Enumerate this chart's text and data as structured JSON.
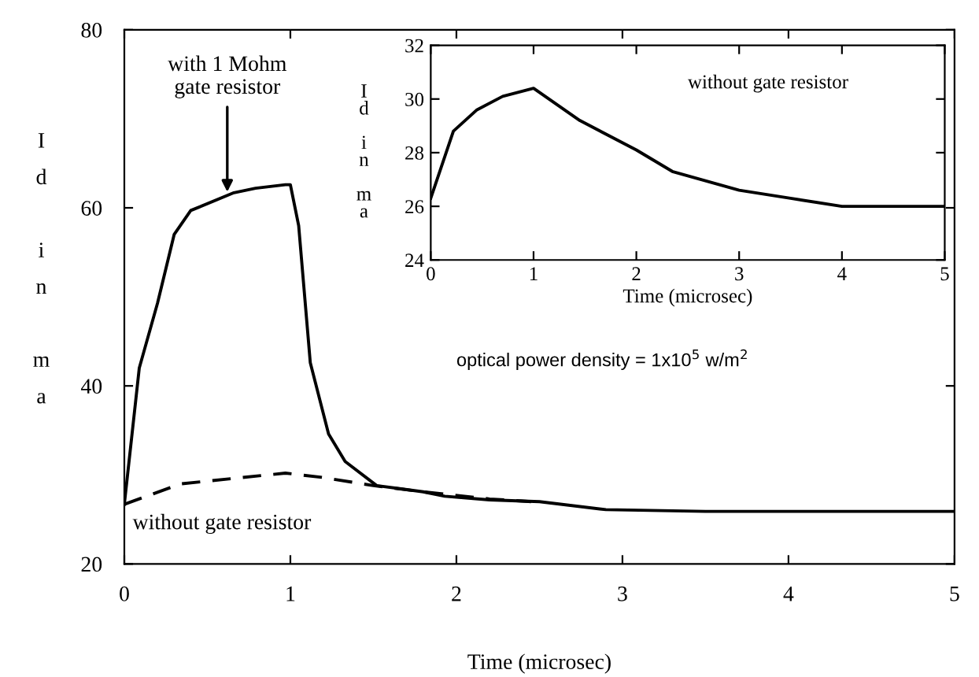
{
  "chart_data": [
    {
      "type": "line",
      "xlabel": "Time (microsec)",
      "ylabel": "Id in ma",
      "xlim": [
        0,
        5
      ],
      "ylim": [
        20,
        80
      ],
      "xticks": [
        0,
        1,
        2,
        3,
        4,
        5
      ],
      "yticks": [
        20,
        40,
        60,
        80
      ],
      "grid": false,
      "legend": false,
      "marker": "none",
      "series": [
        {
          "color": "#000000",
          "line_style": "solid",
          "x": [
            0,
            0.09,
            0.2,
            0.3,
            0.4,
            0.66,
            0.79,
            0.97,
            1.0,
            1.05,
            1.12,
            1.23,
            1.33,
            1.52,
            1.8,
            1.93,
            2.2,
            2.5,
            2.9,
            3.5,
            5
          ],
          "values": [
            26.7,
            42,
            49.3,
            57,
            59.7,
            61.7,
            62.2,
            62.6,
            62.6,
            58,
            42.6,
            34.6,
            31.5,
            28.8,
            28.1,
            27.6,
            27.2,
            27,
            26.1,
            25.9,
            25.9
          ]
        },
        {
          "color": "#000000",
          "line_style": "dashed",
          "x": [
            0,
            0.34,
            0.97,
            1.2,
            1.5,
            1.8,
            2.2,
            2.45
          ],
          "values": [
            26.7,
            29,
            30.2,
            29.7,
            28.8,
            28.1,
            27.3,
            27
          ]
        }
      ],
      "annotations": [
        {
          "text": "with 1 Mohm\ngate resistor",
          "x": 0.62,
          "y": 61.3
        },
        "without gate resistor",
        "optical power density = 1x10$^{5}$ w/m$^{2}$"
      ]
    },
    {
      "type": "line",
      "xlabel": "Time (microsec)",
      "ylabel": "Id in ma",
      "xlim": [
        0,
        5
      ],
      "ylim": [
        24,
        32
      ],
      "xticks": [
        0,
        1,
        2,
        3,
        4,
        5
      ],
      "yticks": [
        24,
        26,
        28,
        30,
        32
      ],
      "grid": false,
      "legend": false,
      "marker": "none",
      "series": [
        {
          "color": "#000000",
          "line_style": "solid",
          "x": [
            0,
            0.22,
            0.45,
            0.7,
            1.0,
            1.45,
            2.0,
            2.35,
            3.0,
            3.5,
            4.0,
            5.0
          ],
          "values": [
            26.3,
            28.8,
            29.6,
            30.1,
            30.4,
            29.2,
            28.1,
            27.3,
            26.6,
            26.3,
            26.0,
            26.0
          ]
        }
      ],
      "annotations": [
        "without gate resistor"
      ]
    }
  ]
}
